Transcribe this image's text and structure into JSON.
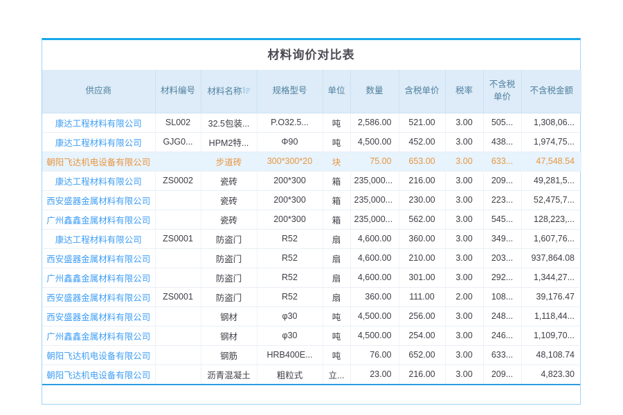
{
  "title": "材料询价对比表",
  "colors": {
    "accent-border": "#17a7e9",
    "soft-border": "#9bd4f5",
    "table-bottom": "#2b9ce3",
    "header-bg": "#ddecf8",
    "header-text": "#51809f",
    "link-blue": "#3f9ef5",
    "highlight-bg": "#e7f3fd",
    "highlight-text": "#e8963f"
  },
  "table": {
    "columns": [
      {
        "key": "supplier",
        "label": "供应商",
        "sortable": false
      },
      {
        "key": "code",
        "label": "材料编号",
        "sortable": false
      },
      {
        "key": "name",
        "label": "材料名称",
        "sortable": true
      },
      {
        "key": "spec",
        "label": "规格型号",
        "sortable": false
      },
      {
        "key": "unit",
        "label": "单位",
        "sortable": false
      },
      {
        "key": "qty",
        "label": "数量",
        "sortable": false
      },
      {
        "key": "price_tax",
        "label": "含税单价",
        "sortable": false
      },
      {
        "key": "tax_rate",
        "label": "税率",
        "sortable": false
      },
      {
        "key": "price_net",
        "label": "不含税单价",
        "sortable": false
      },
      {
        "key": "amount_net",
        "label": "不含税金额",
        "sortable": false
      }
    ],
    "rows": [
      {
        "supplier": "康达工程材料有限公司",
        "code": "SL002",
        "name": "32.5包装...",
        "spec": "P.O32.5...",
        "unit": "吨",
        "qty": "2,586.00",
        "price_tax": "521.00",
        "tax_rate": "3.00",
        "price_net": "505...",
        "amount_net": "1,308,06...",
        "highlighted": false
      },
      {
        "supplier": "康达工程材料有限公司",
        "code": "GJG0...",
        "name": "HPM2特...",
        "spec": "Φ90",
        "unit": "吨",
        "qty": "4,500.00",
        "price_tax": "452.00",
        "tax_rate": "3.00",
        "price_net": "438...",
        "amount_net": "1,974,75...",
        "highlighted": false
      },
      {
        "supplier": "朝阳飞达机电设备有限公司",
        "code": "",
        "name": "步道砖",
        "spec": "300*300*20",
        "unit": "块",
        "qty": "75.00",
        "price_tax": "653.00",
        "tax_rate": "3.00",
        "price_net": "633...",
        "amount_net": "47,548.54",
        "highlighted": true
      },
      {
        "supplier": "康达工程材料有限公司",
        "code": "ZS0002",
        "name": "瓷砖",
        "spec": "200*300",
        "unit": "箱",
        "qty": "235,000...",
        "price_tax": "216.00",
        "tax_rate": "3.00",
        "price_net": "209...",
        "amount_net": "49,281,5...",
        "highlighted": false
      },
      {
        "supplier": "西安盛器金属材料有限公司",
        "code": "",
        "name": "瓷砖",
        "spec": "200*300",
        "unit": "箱",
        "qty": "235,000...",
        "price_tax": "230.00",
        "tax_rate": "3.00",
        "price_net": "223...",
        "amount_net": "52,475,7...",
        "highlighted": false
      },
      {
        "supplier": "广州鑫鑫金属材料有限公司",
        "code": "",
        "name": "瓷砖",
        "spec": "200*300",
        "unit": "箱",
        "qty": "235,000...",
        "price_tax": "562.00",
        "tax_rate": "3.00",
        "price_net": "545...",
        "amount_net": "128,223,...",
        "highlighted": false
      },
      {
        "supplier": "康达工程材料有限公司",
        "code": "ZS0001",
        "name": "防盗门",
        "spec": "R52",
        "unit": "扇",
        "qty": "4,600.00",
        "price_tax": "360.00",
        "tax_rate": "3.00",
        "price_net": "349...",
        "amount_net": "1,607,76...",
        "highlighted": false
      },
      {
        "supplier": "西安盛器金属材料有限公司",
        "code": "",
        "name": "防盗门",
        "spec": "R52",
        "unit": "扇",
        "qty": "4,600.00",
        "price_tax": "210.00",
        "tax_rate": "3.00",
        "price_net": "203...",
        "amount_net": "937,864.08",
        "highlighted": false
      },
      {
        "supplier": "广州鑫鑫金属材料有限公司",
        "code": "",
        "name": "防盗门",
        "spec": "R52",
        "unit": "扇",
        "qty": "4,600.00",
        "price_tax": "301.00",
        "tax_rate": "3.00",
        "price_net": "292...",
        "amount_net": "1,344,27...",
        "highlighted": false
      },
      {
        "supplier": "西安盛器金属材料有限公司",
        "code": "ZS0001",
        "name": "防盗门",
        "spec": "R52",
        "unit": "扇",
        "qty": "360.00",
        "price_tax": "111.00",
        "tax_rate": "2.00",
        "price_net": "108...",
        "amount_net": "39,176.47",
        "highlighted": false
      },
      {
        "supplier": "西安盛器金属材料有限公司",
        "code": "",
        "name": "钢材",
        "spec": "φ30",
        "unit": "吨",
        "qty": "4,500.00",
        "price_tax": "256.00",
        "tax_rate": "3.00",
        "price_net": "248...",
        "amount_net": "1,118,44...",
        "highlighted": false
      },
      {
        "supplier": "广州鑫鑫金属材料有限公司",
        "code": "",
        "name": "钢材",
        "spec": "φ30",
        "unit": "吨",
        "qty": "4,500.00",
        "price_tax": "254.00",
        "tax_rate": "3.00",
        "price_net": "246...",
        "amount_net": "1,109,70...",
        "highlighted": false
      },
      {
        "supplier": "朝阳飞达机电设备有限公司",
        "code": "",
        "name": "钢筋",
        "spec": "HRB400E...",
        "unit": "吨",
        "qty": "76.00",
        "price_tax": "652.00",
        "tax_rate": "3.00",
        "price_net": "633...",
        "amount_net": "48,108.74",
        "highlighted": false
      },
      {
        "supplier": "朝阳飞达机电设备有限公司",
        "code": "",
        "name": "沥青混凝土",
        "spec": "粗粒式",
        "unit": "立...",
        "qty": "23.00",
        "price_tax": "216.00",
        "tax_rate": "3.00",
        "price_net": "209...",
        "amount_net": "4,823.30",
        "highlighted": false
      }
    ]
  }
}
